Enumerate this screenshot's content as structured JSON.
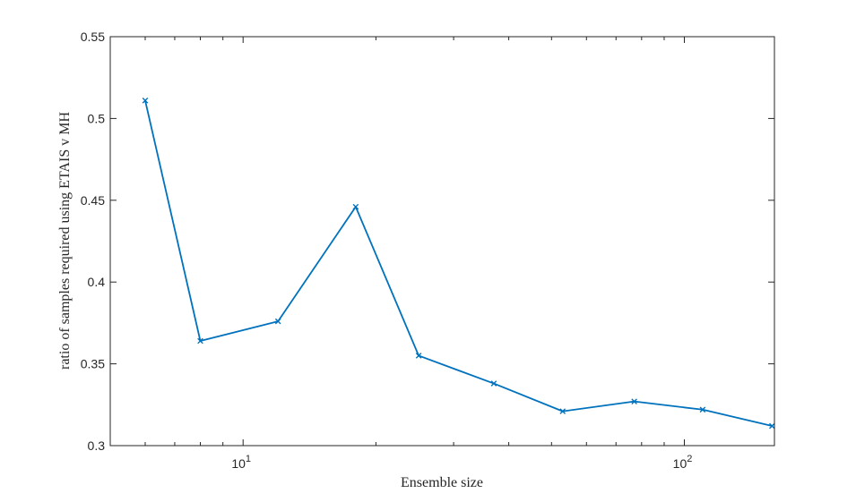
{
  "chart_data": {
    "type": "line",
    "xscale": "log",
    "xlim": [
      5,
      160
    ],
    "ylim": [
      0.3,
      0.55
    ],
    "xlabel": "Ensemble size",
    "ylabel": "ratio of samples required using ETAIS v MH",
    "y_ticks": [
      0.3,
      0.35,
      0.4,
      0.45,
      0.5,
      0.55
    ],
    "y_tick_labels": [
      "0.3",
      "0.35",
      "0.4",
      "0.45",
      "0.5",
      "0.55"
    ],
    "x_major_ticks": [
      10,
      100
    ],
    "x_tick_labels": [
      {
        "base": "10",
        "exp": "1"
      },
      {
        "base": "10",
        "exp": "2"
      }
    ],
    "x_minor_ticks": [
      6,
      7,
      8,
      9,
      20,
      30,
      40,
      50,
      60,
      70,
      80,
      90
    ],
    "grid": false,
    "series": [
      {
        "color": "#0072BD",
        "marker": "x",
        "x": [
          6,
          8,
          12,
          18,
          25,
          37,
          53,
          77,
          110,
          158
        ],
        "y": [
          0.511,
          0.364,
          0.376,
          0.446,
          0.355,
          0.338,
          0.321,
          0.327,
          0.322,
          0.312
        ]
      }
    ]
  }
}
